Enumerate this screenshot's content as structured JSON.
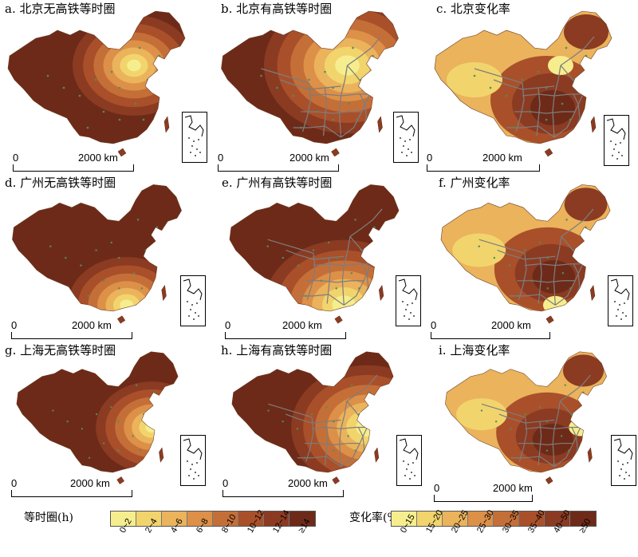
{
  "panels": [
    {
      "title": "a. 北京无高铁等时圈",
      "type": "iso",
      "hsr": false,
      "city": "北京"
    },
    {
      "title": "b. 北京有高铁等时圈",
      "type": "iso",
      "hsr": true,
      "city": "北京"
    },
    {
      "title": "c. 北京变化率",
      "type": "rate",
      "hsr": true,
      "city": "北京"
    },
    {
      "title": "d. 广州无高铁等时圈",
      "type": "iso",
      "hsr": false,
      "city": "广州"
    },
    {
      "title": "e. 广州有高铁等时圈",
      "type": "iso",
      "hsr": true,
      "city": "广州"
    },
    {
      "title": "f. 广州变化率",
      "type": "rate",
      "hsr": true,
      "city": "广州"
    },
    {
      "title": "g. 上海无高铁等时圈",
      "type": "iso",
      "hsr": false,
      "city": "上海"
    },
    {
      "title": "h. 上海有高铁等时圈",
      "type": "iso",
      "hsr": true,
      "city": "上海"
    },
    {
      "title": "i. 上海变化率",
      "type": "rate",
      "hsr": true,
      "city": "上海"
    }
  ],
  "scalebar": {
    "zero": "0",
    "distance": "2000 km"
  },
  "legend_iso": {
    "title": "等时圈(h)",
    "classes": [
      "0~2",
      "2~4",
      "4~6",
      "6~8",
      "8~10",
      "10~12",
      "12~14",
      "≥14"
    ],
    "colors": [
      "#f6ee8e",
      "#f2d46d",
      "#eab35c",
      "#dd9048",
      "#c56f38",
      "#a9502a",
      "#8b3b22",
      "#6e2a18"
    ]
  },
  "legend_rate": {
    "title": "变化率(%)",
    "classes": [
      "0~15",
      "15~20",
      "20~25",
      "25~30",
      "30~35",
      "35~40",
      "40~50",
      "≥50"
    ],
    "colors": [
      "#f6ee8e",
      "#f2d46d",
      "#eab35c",
      "#dd9048",
      "#c56f38",
      "#a9502a",
      "#8b3b22",
      "#6e2a18"
    ]
  }
}
